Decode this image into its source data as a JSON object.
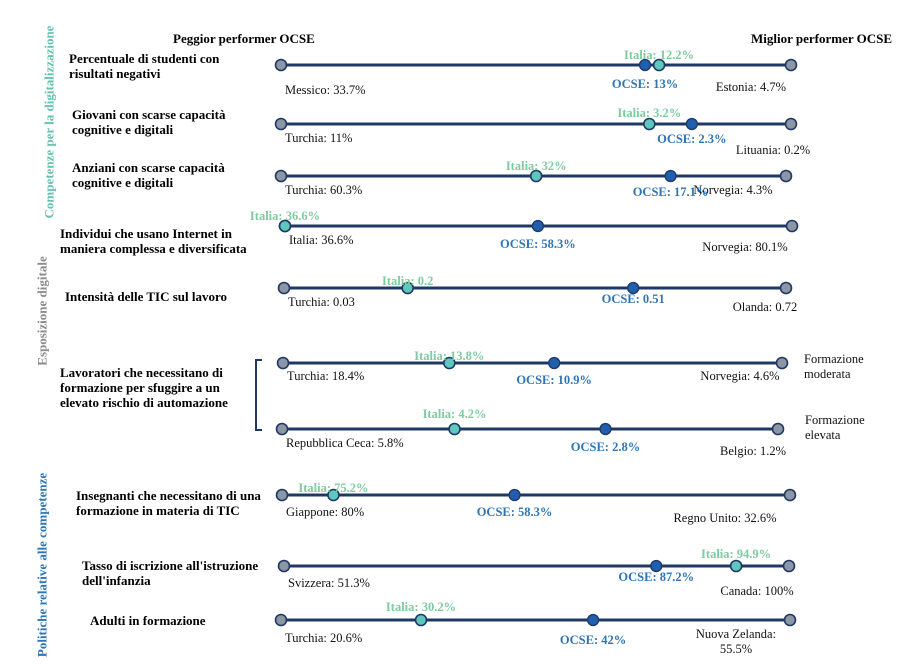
{
  "headers": {
    "left": "Peggior performer OCSE",
    "right": "Miglior performer OCSE"
  },
  "groups": [
    {
      "label": "Competenze per la digitalizzazione",
      "color": "#66c2b1"
    },
    {
      "label": "Esposizione digitale",
      "color": "#8a8a8a"
    },
    {
      "label": "Politiche relative alle competenze",
      "color": "#2e75b6"
    }
  ],
  "colors": {
    "line": "#1f3864",
    "endpoint": "#8c96a5",
    "oecd": "#1f5fad",
    "italy": "#5ec8bf",
    "oecd_text": "#2e75b6",
    "italy_text": "#7fcba0"
  },
  "chart_data": {
    "type": "dot-range",
    "indicators": [
      {
        "label": "Percentuale di studenti con risultati negativi",
        "worst": "Messico: 33.7%",
        "best": "Estonia: 4.7%",
        "worst_value": 33.7,
        "best_value": 4.7,
        "oecd": "OCSE: 13%",
        "oecd_value": 13,
        "italy": "Italia: 12.2%",
        "italy_value": 12.2,
        "sub": ""
      },
      {
        "label": "Giovani con scarse capacità cognitive e digitali",
        "worst": "Turchia: 11%",
        "best": "Lituania: 0.2%",
        "worst_value": 11,
        "best_value": 0.2,
        "oecd": "OCSE: 2.3%",
        "oecd_value": 2.3,
        "italy": "Italia: 3.2%",
        "italy_value": 3.2,
        "sub": ""
      },
      {
        "label": "Anziani con scarse capacità cognitive e digitali",
        "worst": "Turchia: 60.3%",
        "best": "Norvegia: 4.3%",
        "worst_value": 60.3,
        "best_value": 4.3,
        "oecd": "OCSE: 17.1%",
        "oecd_value": 17.1,
        "italy": "Italia: 32%",
        "italy_value": 32,
        "sub": ""
      },
      {
        "label": "Individui che usano Internet in maniera complessa e diversificata",
        "worst": "Italia: 36.6%",
        "best": "Norvegia: 80.1%",
        "worst_value": 36.6,
        "best_value": 80.1,
        "oecd": "OCSE: 58.3%",
        "oecd_value": 58.3,
        "italy": "Italia: 36.6%",
        "italy_value": 36.6,
        "sub": ""
      },
      {
        "label": "Intensità delle TIC sul lavoro",
        "worst": "Turchia: 0.03",
        "best": "Olanda: 0.72",
        "worst_value": 0.03,
        "best_value": 0.72,
        "oecd": "OCSE: 0.51",
        "oecd_value": 0.51,
        "italy": "Italia: 0.2",
        "italy_value": 0.2,
        "sub": ""
      },
      {
        "label": "Lavoratori che necessitano di formazione per sfuggire a un elevato rischio di automazione",
        "worst": "Turchia: 18.4%",
        "best": "Norvegia: 4.6%",
        "worst_value": 18.4,
        "best_value": 4.6,
        "oecd": "OCSE: 10.9%",
        "oecd_value": 10.9,
        "italy": "Italia: 13.8%",
        "italy_value": 13.8,
        "sub": "Formazione moderata"
      },
      {
        "label": "",
        "worst": "Repubblica Ceca: 5.8%",
        "best": "Belgio: 1.2%",
        "worst_value": 5.8,
        "best_value": 1.2,
        "oecd": "OCSE: 2.8%",
        "oecd_value": 2.8,
        "italy": "Italia: 4.2%",
        "italy_value": 4.2,
        "sub": "Formazione elevata"
      },
      {
        "label": "Insegnanti che necessitano di una formazione in materia di TIC",
        "worst": "Giappone: 80%",
        "best": "Regno Unito: 32.6%",
        "worst_value": 80,
        "best_value": 32.6,
        "oecd": "OCSE: 58.3%",
        "oecd_value": 58.3,
        "italy": "Italia: 75.2%",
        "italy_value": 75.2,
        "sub": ""
      },
      {
        "label": "Tasso di iscrizione all'istruzione dell'infanzia",
        "worst": "Svizzera: 51.3%",
        "best": "Canada: 100%",
        "worst_value": 51.3,
        "best_value": 100,
        "oecd": "OCSE: 87.2%",
        "oecd_value": 87.2,
        "italy": "Italia: 94.9%",
        "italy_value": 94.9,
        "sub": ""
      },
      {
        "label": "Adulti in formazione",
        "worst": "Turchia: 20.6%",
        "best": "Nuova Zelanda: 55.5%",
        "worst_value": 20.6,
        "best_value": 55.5,
        "oecd": "OCSE: 42%",
        "oecd_value": 42,
        "italy": "Italia: 30.2%",
        "italy_value": 30.2,
        "sub": ""
      }
    ]
  }
}
